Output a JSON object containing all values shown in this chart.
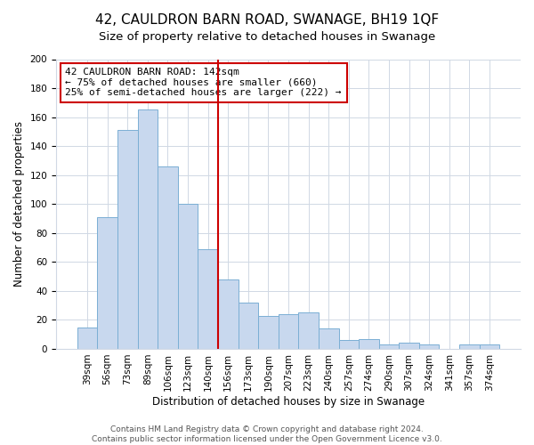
{
  "title": "42, CAULDRON BARN ROAD, SWANAGE, BH19 1QF",
  "subtitle": "Size of property relative to detached houses in Swanage",
  "xlabel": "Distribution of detached houses by size in Swanage",
  "ylabel": "Number of detached properties",
  "bin_labels": [
    "39sqm",
    "56sqm",
    "73sqm",
    "89sqm",
    "106sqm",
    "123sqm",
    "140sqm",
    "156sqm",
    "173sqm",
    "190sqm",
    "207sqm",
    "223sqm",
    "240sqm",
    "257sqm",
    "274sqm",
    "290sqm",
    "307sqm",
    "324sqm",
    "341sqm",
    "357sqm",
    "374sqm"
  ],
  "bar_heights": [
    15,
    91,
    151,
    165,
    126,
    100,
    69,
    48,
    32,
    23,
    24,
    25,
    14,
    6,
    7,
    3,
    4,
    3,
    0,
    3,
    3
  ],
  "bar_color": "#c8d8ee",
  "bar_edge_color": "#7bafd4",
  "vline_color": "#cc0000",
  "vline_bar_index": 6,
  "annotation_text": "42 CAULDRON BARN ROAD: 142sqm\n← 75% of detached houses are smaller (660)\n25% of semi-detached houses are larger (222) →",
  "annotation_box_color": "#ffffff",
  "annotation_box_edge_color": "#cc0000",
  "ylim": [
    0,
    200
  ],
  "yticks": [
    0,
    20,
    40,
    60,
    80,
    100,
    120,
    140,
    160,
    180,
    200
  ],
  "footer_line1": "Contains HM Land Registry data © Crown copyright and database right 2024.",
  "footer_line2": "Contains public sector information licensed under the Open Government Licence v3.0.",
  "title_fontsize": 11,
  "subtitle_fontsize": 9.5,
  "axis_label_fontsize": 8.5,
  "tick_fontsize": 7.5,
  "annotation_fontsize": 8,
  "footer_fontsize": 6.5,
  "grid_color": "#d0d8e4"
}
